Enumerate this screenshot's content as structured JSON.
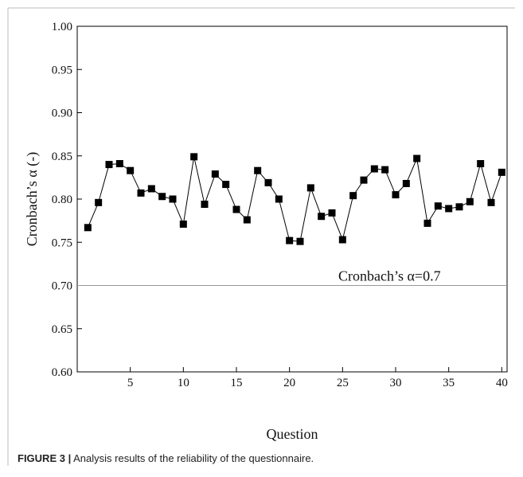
{
  "chart_data": {
    "type": "line",
    "x_label": "Question",
    "y_label": "Cronbach’s α (-)",
    "x": [
      1,
      2,
      3,
      4,
      5,
      6,
      7,
      8,
      9,
      10,
      11,
      12,
      13,
      14,
      15,
      16,
      17,
      18,
      19,
      20,
      21,
      22,
      23,
      24,
      25,
      26,
      27,
      28,
      29,
      30,
      31,
      32,
      33,
      34,
      35,
      36,
      37,
      38,
      39,
      40
    ],
    "series": [
      {
        "color": "#000000",
        "values": [
          0.767,
          0.796,
          0.84,
          0.841,
          0.833,
          0.807,
          0.812,
          0.803,
          0.8,
          0.771,
          0.849,
          0.794,
          0.829,
          0.817,
          0.788,
          0.776,
          0.833,
          0.819,
          0.8,
          0.752,
          0.751,
          0.813,
          0.78,
          0.784,
          0.753,
          0.804,
          0.822,
          0.835,
          0.834,
          0.805,
          0.818,
          0.847,
          0.772,
          0.792,
          0.789,
          0.791,
          0.797,
          0.841,
          0.796,
          0.831
        ]
      }
    ],
    "xlim": [
      0,
      40.5
    ],
    "ylim": [
      0.6,
      1.0
    ],
    "xticks": [
      5,
      10,
      15,
      20,
      25,
      30,
      35,
      40
    ],
    "yticks": [
      {
        "value": 0.6,
        "label": "0.60"
      },
      {
        "value": 0.65,
        "label": "0.65"
      },
      {
        "value": 0.7,
        "label": "0.70"
      },
      {
        "value": 0.75,
        "label": "0.75"
      },
      {
        "value": 0.8,
        "label": "0.80"
      },
      {
        "value": 0.85,
        "label": "0.85"
      },
      {
        "value": 0.9,
        "label": "0.90"
      },
      {
        "value": 0.95,
        "label": "0.95"
      },
      {
        "value": 1.0,
        "label": "1.00"
      }
    ],
    "reference_line": {
      "value": 0.7,
      "label": "Cronbach’s α=0.7",
      "color": "#999999"
    },
    "caption": {
      "label": "FIGURE 3 |",
      "text": "Analysis results of the reliability of the questionnaire."
    }
  }
}
